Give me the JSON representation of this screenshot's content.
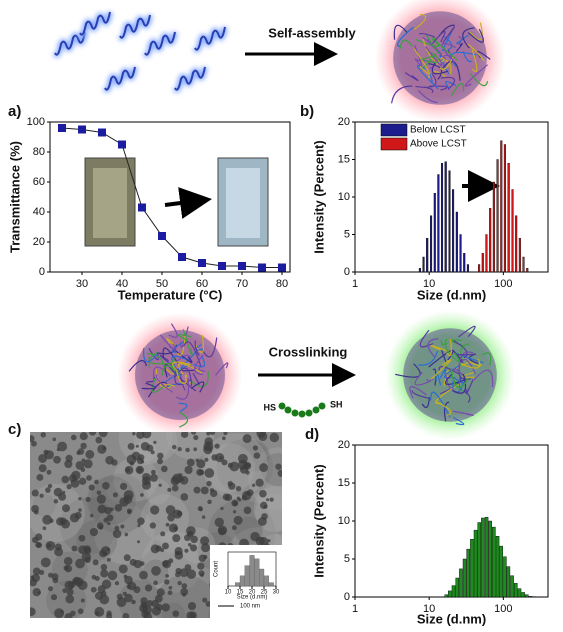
{
  "figure": {
    "self_assembly": "Self-assembly",
    "crosslinking": "Crosslinking",
    "thiol_left": "HS",
    "thiol_right": "SH",
    "panel_c": "c)",
    "scale_bar": "100 nm"
  },
  "chart_data": [
    {
      "type": "line",
      "panel": "a)",
      "xlabel": "Temperature (°C)",
      "ylabel": "Transmittance (%)",
      "x": [
        25,
        30,
        35,
        40,
        45,
        50,
        55,
        60,
        65,
        70,
        75,
        80
      ],
      "values": [
        96,
        95,
        93,
        85,
        43,
        24,
        10,
        6,
        4,
        4,
        3,
        3
      ],
      "color": "#1c1ca0",
      "xlim": [
        22,
        82
      ],
      "xticks": [
        30,
        40,
        50,
        60,
        70,
        80
      ],
      "ylim": [
        0,
        100
      ],
      "yticks": [
        0,
        20,
        40,
        60,
        80,
        100
      ]
    },
    {
      "type": "bar",
      "panel": "b)",
      "xlabel": "Size (d.nm)",
      "ylabel": "Intensity (Percent)",
      "xscale": "log",
      "legend": "top-left",
      "x": [
        7.5,
        8.4,
        9.4,
        10.6,
        11.9,
        13.3,
        14.9,
        16.7,
        18.8,
        21,
        23.6,
        26.5,
        29.7,
        33.3,
        37.4,
        42,
        47.1,
        52.8,
        59.2,
        66.5,
        74.5,
        83.6,
        93.8,
        105,
        118,
        133,
        149,
        167,
        187,
        210
      ],
      "series": [
        {
          "name": "Below LCST",
          "color": "#1c1c8c",
          "values": [
            0.5,
            2,
            4.5,
            7.5,
            10.5,
            13,
            14.5,
            14.7,
            13.5,
            11,
            8,
            5,
            2.5,
            1,
            0,
            0,
            0,
            0,
            0,
            0,
            0,
            0,
            0,
            0,
            0,
            0,
            0,
            0,
            0,
            0
          ]
        },
        {
          "name": "Above LCST",
          "color": "#d01818",
          "values": [
            0,
            0,
            0,
            0,
            0,
            0,
            0,
            0,
            0,
            0,
            0,
            0,
            0,
            0,
            0,
            0,
            1,
            2.5,
            5,
            8.5,
            12,
            15,
            17.5,
            17,
            14.5,
            11,
            7.5,
            4.5,
            2,
            0.5
          ]
        }
      ],
      "xlim": [
        1,
        400
      ],
      "xticks": [
        1,
        10,
        100
      ],
      "ylim": [
        0,
        20
      ],
      "yticks": [
        0,
        5,
        10,
        15,
        20
      ]
    },
    {
      "type": "bar",
      "panel": "d)",
      "xlabel": "Size (d.nm)",
      "ylabel": "Intensity (Percent)",
      "xscale": "log",
      "x": [
        17,
        19,
        21.3,
        23.9,
        26.8,
        30,
        33.6,
        37.7,
        42.2,
        47.3,
        53,
        59.4,
        66.5,
        74.5,
        83.5,
        93.5,
        105,
        117,
        131,
        147,
        165,
        185,
        207,
        232,
        260
      ],
      "series": [
        {
          "color": "#1f8a1f",
          "values": [
            0.3,
            0.8,
            1.5,
            2.5,
            3.7,
            5,
            6.3,
            7.6,
            8.8,
            9.8,
            10.4,
            10.5,
            10,
            9.2,
            8,
            6.7,
            5.3,
            4,
            2.8,
            1.8,
            1.1,
            0.6,
            0.3,
            0.1,
            0.05
          ]
        }
      ],
      "xlim": [
        1,
        400
      ],
      "xticks": [
        1,
        10,
        100
      ],
      "ylim": [
        0,
        20
      ],
      "yticks": [
        0,
        5,
        10,
        15,
        20
      ]
    },
    {
      "type": "histogram",
      "xlabel": "Size (d.nm)",
      "ylabel": "Count",
      "bins": [
        13,
        15,
        17,
        19,
        21,
        23,
        25,
        27,
        29
      ],
      "values": [
        1,
        3,
        6,
        9,
        8,
        5,
        3,
        1
      ],
      "color": "#8a8a8a",
      "xlim": [
        10,
        30
      ],
      "xticks": [
        10,
        15,
        20,
        25,
        30
      ],
      "ylim": [
        0,
        10
      ]
    }
  ]
}
